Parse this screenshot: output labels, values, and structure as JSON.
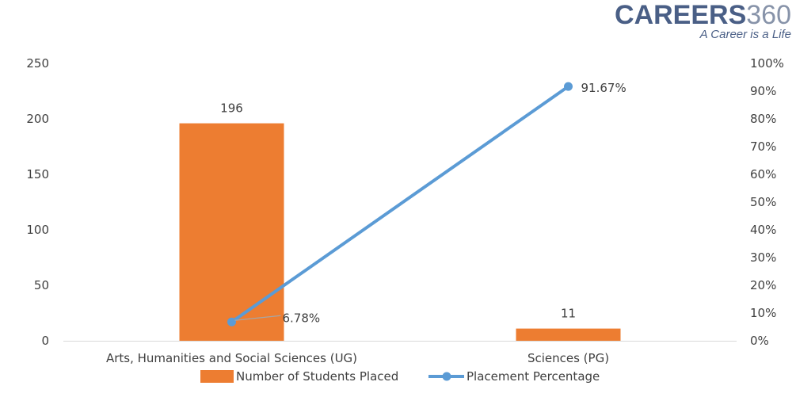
{
  "logo": {
    "brand_word": "CAREERS",
    "brand_number": "360",
    "tagline": "A Career is a Life"
  },
  "chart_data": {
    "type": "bar",
    "categories": [
      "Arts, Humanities and Social Sciences (UG)",
      "Sciences (PG)"
    ],
    "series": [
      {
        "name": "Number of Students Placed",
        "type": "bar",
        "axis": "left",
        "values": [
          196,
          11
        ],
        "labels": [
          "196",
          "11"
        ],
        "color": "#ed7d31"
      },
      {
        "name": "Placement Percentage",
        "type": "line",
        "axis": "right",
        "values": [
          6.78,
          91.67
        ],
        "labels": [
          "6.78%",
          "91.67%"
        ],
        "color": "#5b9bd5"
      }
    ],
    "y_left": {
      "min": 0,
      "max": 250,
      "ticks": [
        "0",
        "50",
        "100",
        "150",
        "200",
        "250"
      ]
    },
    "y_right": {
      "min": 0,
      "max": 100,
      "ticks": [
        "0%",
        "10%",
        "20%",
        "30%",
        "40%",
        "50%",
        "60%",
        "70%",
        "80%",
        "90%",
        "100%"
      ]
    },
    "legend": "bottom",
    "grid": false
  }
}
